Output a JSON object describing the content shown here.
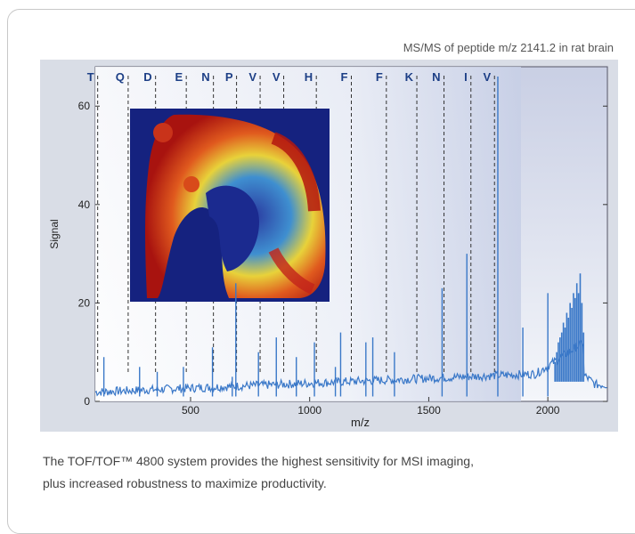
{
  "figure": {
    "title": "MS/MS of peptide m/z 2141.2 in rat brain",
    "caption_lines": [
      "The TOF/TOF™ 4800 system provides the highest sensitivity for MSI imaging,",
      "plus increased robustness to maximize productivity."
    ]
  },
  "chart_data": {
    "type": "line",
    "title": "MS/MS of peptide m/z 2141.2 in rat brain",
    "xlabel": "m/z",
    "ylabel": "Signal",
    "xlim": [
      100,
      2250
    ],
    "ylim": [
      0,
      68
    ],
    "xticks": [
      500,
      1000,
      1500,
      2000
    ],
    "yticks": [
      0,
      20,
      40,
      60
    ],
    "grid": false,
    "line_color": "#3a78c8",
    "fragment_labels": [
      {
        "label": "T",
        "mz": 110
      },
      {
        "label": "Q",
        "mz": 238
      },
      {
        "label": "D",
        "mz": 353
      },
      {
        "label": "E",
        "mz": 482
      },
      {
        "label": "N",
        "mz": 596
      },
      {
        "label": "P",
        "mz": 693
      },
      {
        "label": "V",
        "mz": 792
      },
      {
        "label": "V",
        "mz": 891
      },
      {
        "label": "H",
        "mz": 1028
      },
      {
        "label": "F",
        "mz": 1175
      },
      {
        "label": "F",
        "mz": 1322
      },
      {
        "label": "K",
        "mz": 1450
      },
      {
        "label": "N",
        "mz": 1564
      },
      {
        "label": "I",
        "mz": 1677
      },
      {
        "label": "V",
        "mz": 1776
      }
    ],
    "peaks": [
      {
        "mz": 136,
        "signal": 9
      },
      {
        "mz": 286,
        "signal": 7
      },
      {
        "mz": 360,
        "signal": 6
      },
      {
        "mz": 470,
        "signal": 7
      },
      {
        "mz": 592,
        "signal": 11
      },
      {
        "mz": 675,
        "signal": 5
      },
      {
        "mz": 690,
        "signal": 24
      },
      {
        "mz": 785,
        "signal": 10
      },
      {
        "mz": 860,
        "signal": 13
      },
      {
        "mz": 944,
        "signal": 9
      },
      {
        "mz": 1020,
        "signal": 12
      },
      {
        "mz": 1108,
        "signal": 7
      },
      {
        "mz": 1130,
        "signal": 14
      },
      {
        "mz": 1236,
        "signal": 12
      },
      {
        "mz": 1265,
        "signal": 13
      },
      {
        "mz": 1356,
        "signal": 10
      },
      {
        "mz": 1556,
        "signal": 23
      },
      {
        "mz": 1660,
        "signal": 30
      },
      {
        "mz": 1790,
        "signal": 66
      },
      {
        "mz": 1895,
        "signal": 15
      },
      {
        "mz": 2000,
        "signal": 22
      }
    ],
    "isotope_cluster": {
      "mz_start": 2030,
      "mz_end": 2150,
      "signals": [
        8,
        10,
        12,
        13,
        14,
        16,
        15,
        18,
        17,
        20,
        19,
        22,
        21,
        24,
        22,
        26,
        20,
        14
      ]
    }
  }
}
